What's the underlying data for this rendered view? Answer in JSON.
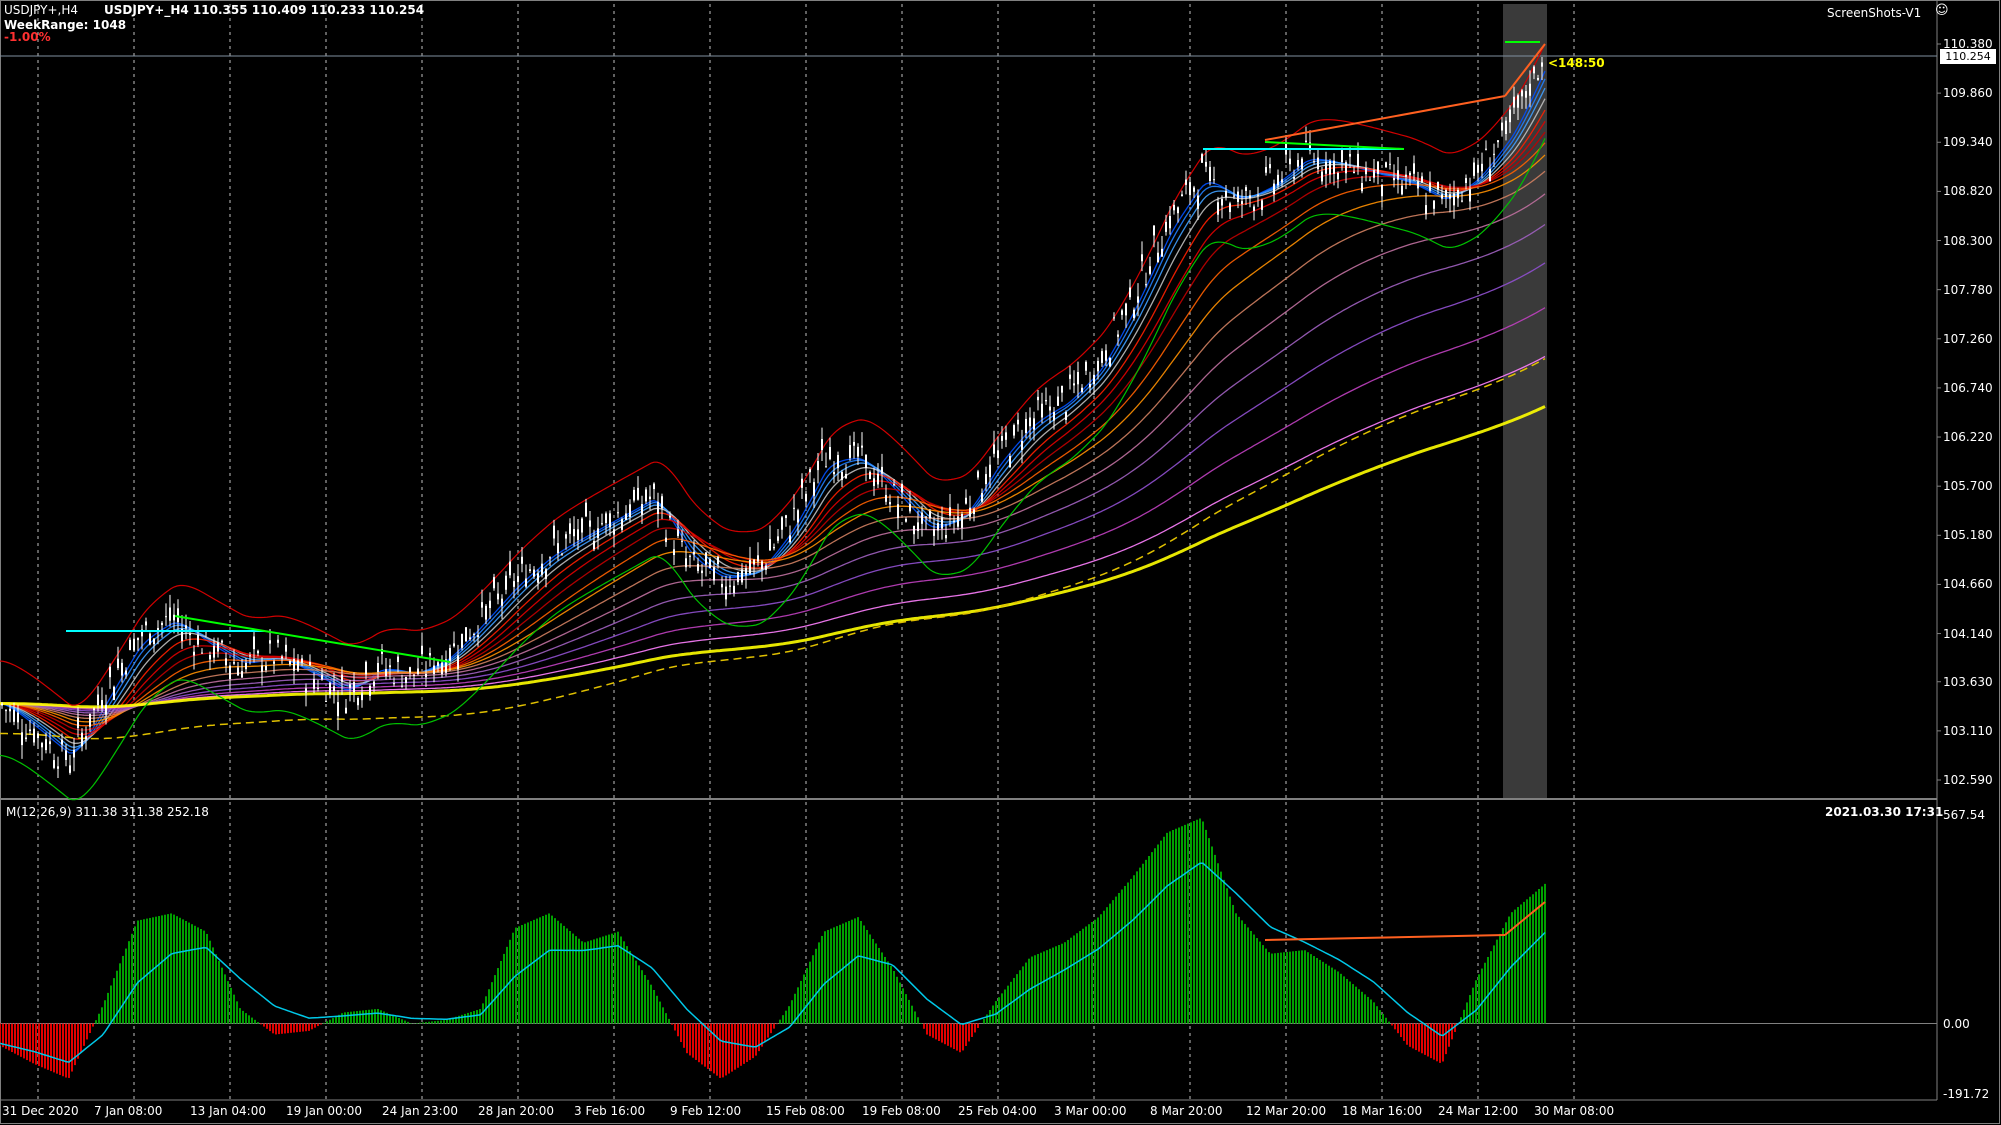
{
  "header": {
    "symbol_line": "USDJPY+,H4",
    "ohlc_line": "USDJPY+_H4 110.355 110.409 110.233 110.254",
    "week_range": "WeekRange: 1048",
    "change": "-1.00%",
    "screenshot_label": "ScreenShots-V1",
    "countdown": "<148:50"
  },
  "price_axis": {
    "current_price": "110.254",
    "labels": [
      "110.380",
      "109.860",
      "109.340",
      "108.820",
      "108.300",
      "107.780",
      "107.260",
      "106.740",
      "106.220",
      "105.700",
      "105.180",
      "104.660",
      "104.140",
      "103.630",
      "103.110",
      "102.590"
    ]
  },
  "macd_panel": {
    "label": "M(12,26,9) 311.38 311.38 252.18",
    "timestamp": "2021.03.30 17:31",
    "axis_labels": [
      "567.54",
      "0.00",
      "-191.72"
    ]
  },
  "time_axis": [
    "31 Dec 2020",
    "7 Jan 08:00",
    "13 Jan 04:00",
    "19 Jan 00:00",
    "24 Jan 23:00",
    "28 Jan 20:00",
    "3 Feb 16:00",
    "9 Feb 12:00",
    "15 Feb 08:00",
    "19 Feb 08:00",
    "25 Feb 04:00",
    "3 Mar 00:00",
    "8 Mar 20:00",
    "12 Mar 20:00",
    "18 Mar 16:00",
    "24 Mar 12:00",
    "30 Mar 08:00"
  ],
  "colors": {
    "up_hist": "#00a000",
    "down_hist": "#e00000",
    "signal": "#00c8e8",
    "price_line": "#ffffff",
    "highlight": "#ffff00",
    "cyan_line": "#00ffff"
  },
  "chart_data": {
    "type": "line",
    "series": [
      {
        "values": [
          103.4,
          103.1,
          102.8,
          103.5,
          104.1,
          104.3,
          104.0,
          103.8,
          103.9,
          103.7,
          103.5,
          103.8,
          103.7,
          103.9,
          104.3,
          104.7,
          105.0,
          105.2,
          105.4,
          105.6,
          104.9,
          104.7,
          104.8,
          105.3,
          106.0,
          106.0,
          105.6,
          105.2,
          105.4,
          106.0,
          106.4,
          106.6,
          107.0,
          107.7,
          108.5,
          109.0,
          108.7,
          108.9,
          109.2,
          109.1,
          109.0,
          108.9,
          108.7,
          109.0,
          109.5,
          110.3
        ]
      }
    ],
    "macd": [
      -60,
      -110,
      -150,
      50,
      280,
      300,
      250,
      40,
      -30,
      -20,
      30,
      40,
      0,
      10,
      40,
      260,
      300,
      220,
      250,
      100,
      -80,
      -150,
      -90,
      50,
      250,
      290,
      150,
      -30,
      -80,
      60,
      180,
      220,
      290,
      400,
      520,
      560,
      300,
      190,
      200,
      140,
      60,
      -60,
      -110,
      120,
      300,
      380
    ]
  }
}
